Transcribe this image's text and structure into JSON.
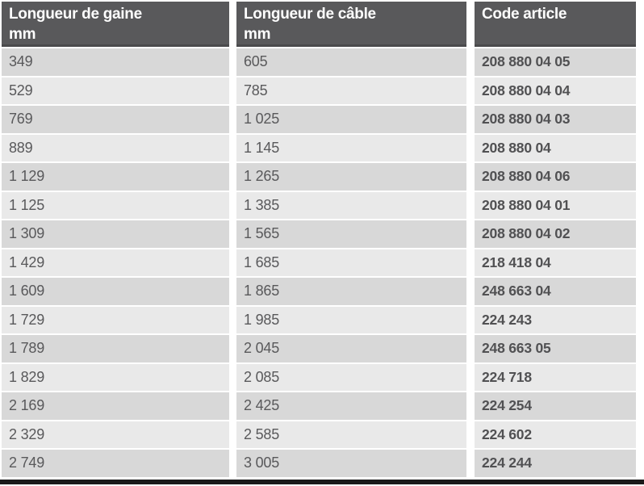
{
  "table": {
    "columns": [
      {
        "title": "Longueur de gaine",
        "unit": "mm"
      },
      {
        "title": "Longueur de câble",
        "unit": "mm"
      },
      {
        "title": "Code article",
        "unit": ""
      }
    ],
    "rows": [
      {
        "gaine": "349",
        "cable": "605",
        "code": "208 880 04 05"
      },
      {
        "gaine": "529",
        "cable": "785",
        "code": "208 880 04 04"
      },
      {
        "gaine": "769",
        "cable": "1 025",
        "code": "208 880 04 03"
      },
      {
        "gaine": "889",
        "cable": "1 145",
        "code": "208 880 04"
      },
      {
        "gaine": "1 129",
        "cable": "1 265",
        "code": "208 880 04 06"
      },
      {
        "gaine": "1 125",
        "cable": "1 385",
        "code": "208 880 04 01"
      },
      {
        "gaine": "1 309",
        "cable": "1 565",
        "code": "208 880 04 02"
      },
      {
        "gaine": "1 429",
        "cable": "1 685",
        "code": "218 418 04"
      },
      {
        "gaine": "1 609",
        "cable": "1 865",
        "code": "248 663 04"
      },
      {
        "gaine": "1 729",
        "cable": "1 985",
        "code": "224 243"
      },
      {
        "gaine": "1 789",
        "cable": "2 045",
        "code": "248 663 05"
      },
      {
        "gaine": "1 829",
        "cable": "2 085",
        "code": "224 718"
      },
      {
        "gaine": "2 169",
        "cable": "2 425",
        "code": "224 254"
      },
      {
        "gaine": "2 329",
        "cable": "2 585",
        "code": "224 602"
      },
      {
        "gaine": "2 749",
        "cable": "3 005",
        "code": "224 244"
      }
    ]
  },
  "colors": {
    "header_bg": "#59595b",
    "header_border": "#4a4a4c",
    "row_odd": "#d8d8d8",
    "row_even": "#e9e9e9",
    "value_text": "#59595b",
    "code_text": "#515153",
    "bottom_rule": "#1a1a1a"
  }
}
